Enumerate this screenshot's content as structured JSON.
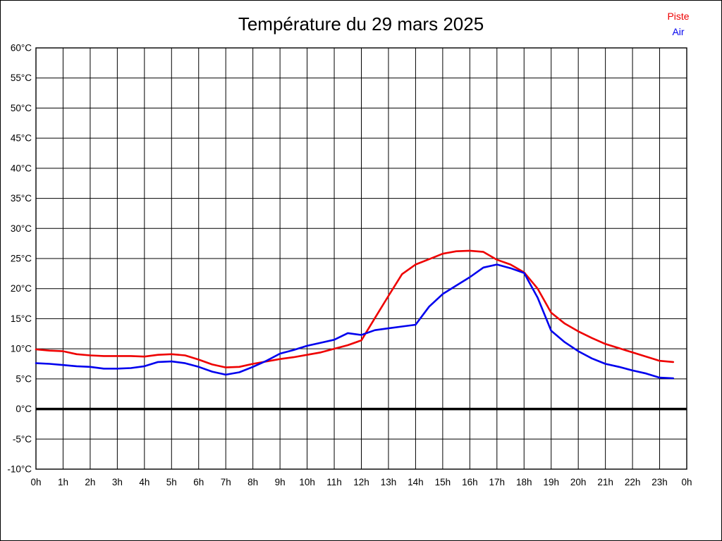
{
  "title": "Température du 29 mars 2025",
  "legend": [
    {
      "label": "Piste",
      "color": "#ee0000"
    },
    {
      "label": "Air",
      "color": "#0000ee"
    }
  ],
  "chart_data": {
    "type": "line",
    "title": "Température du 29 mars 2025",
    "xlabel": "",
    "ylabel": "",
    "xlim": [
      0,
      24
    ],
    "ylim": [
      -10,
      60
    ],
    "y_tick_step": 5,
    "grid": true,
    "zero_line_at": 0,
    "legend_position": "top-right",
    "x_tick_labels": [
      "0h",
      "1h",
      "2h",
      "3h",
      "4h",
      "5h",
      "6h",
      "7h",
      "8h",
      "9h",
      "10h",
      "11h",
      "12h",
      "13h",
      "14h",
      "15h",
      "16h",
      "17h",
      "18h",
      "19h",
      "20h",
      "21h",
      "22h",
      "23h",
      "0h"
    ],
    "y_tick_labels": [
      "60°C",
      "55°C",
      "50°C",
      "45°C",
      "40°C",
      "35°C",
      "30°C",
      "25°C",
      "20°C",
      "15°C",
      "10°C",
      "5°C",
      "0°C",
      "-5°C",
      "-10°C"
    ],
    "x": [
      0,
      0.5,
      1,
      1.5,
      2,
      2.5,
      3,
      3.5,
      4,
      4.5,
      5,
      5.5,
      6,
      6.5,
      7,
      7.5,
      8,
      8.5,
      9,
      9.5,
      10,
      10.5,
      11,
      11.5,
      12,
      12.5,
      13,
      13.5,
      14,
      14.5,
      15,
      15.5,
      16,
      16.5,
      17,
      17.5,
      18,
      18.5,
      19,
      19.5,
      20,
      20.5,
      21,
      21.5,
      22,
      22.5,
      23,
      23.5
    ],
    "series": [
      {
        "name": "Piste",
        "color": "#ee0000",
        "values": [
          9.9,
          9.7,
          9.6,
          9.1,
          8.9,
          8.8,
          8.8,
          8.8,
          8.7,
          9.0,
          9.1,
          8.9,
          8.2,
          7.4,
          6.9,
          7.0,
          7.5,
          7.9,
          8.3,
          8.6,
          9.0,
          9.4,
          10.0,
          10.6,
          11.4,
          15.1,
          18.8,
          22.4,
          24.0,
          24.9,
          25.8,
          26.2,
          26.3,
          26.1,
          24.8,
          24.0,
          22.7,
          20.0,
          16.0,
          14.2,
          12.9,
          11.8,
          10.8,
          10.1,
          9.4,
          8.7,
          8.0,
          7.8
        ]
      },
      {
        "name": "Air",
        "color": "#0000ee",
        "values": [
          7.6,
          7.5,
          7.3,
          7.1,
          7.0,
          6.7,
          6.7,
          6.8,
          7.1,
          7.8,
          7.9,
          7.6,
          7.0,
          6.2,
          5.7,
          6.1,
          7.0,
          8.0,
          9.2,
          9.8,
          10.5,
          11.0,
          11.5,
          12.6,
          12.3,
          13.1,
          13.4,
          13.7,
          14.0,
          17.0,
          19.1,
          20.5,
          21.9,
          23.5,
          24.0,
          23.4,
          22.6,
          18.5,
          13.0,
          11.1,
          9.6,
          8.4,
          7.5,
          7.0,
          6.4,
          5.9,
          5.2,
          5.1
        ]
      }
    ]
  }
}
